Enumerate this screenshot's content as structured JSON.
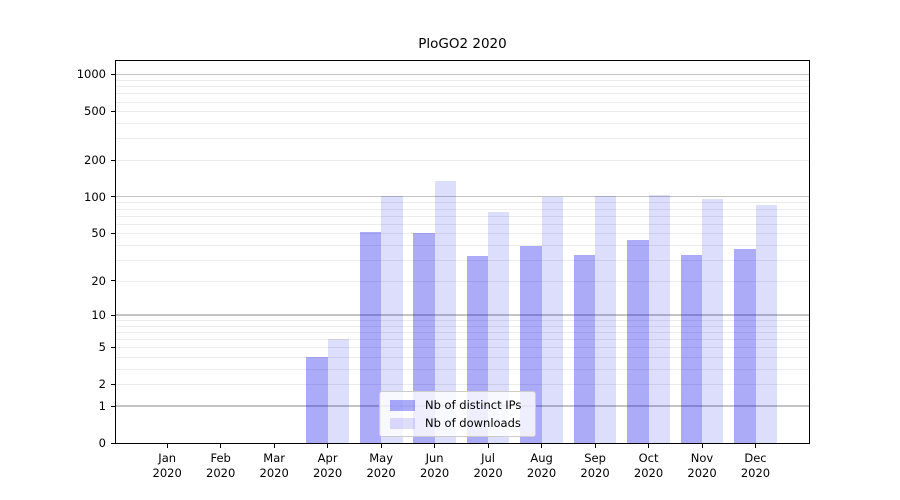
{
  "title": "PloGO2 2020",
  "colors": {
    "bar_dark": "#0d0deb59",
    "bar_light": "#0d0deb24",
    "grid_major": "#c4c4c4",
    "grid_minor": "#ececec",
    "spine": "#000000",
    "legend_bg": "#ffffffcc",
    "legend_border": "#cccccc"
  },
  "legend": {
    "items": [
      {
        "label": "Nb of distinct IPs",
        "color": "#0d0deb59"
      },
      {
        "label": "Nb of downloads",
        "color": "#0d0deb24"
      }
    ]
  },
  "chart_data": {
    "type": "bar",
    "title": "PloGO2 2020",
    "categories": [
      "Jan 2020",
      "Feb 2020",
      "Mar 2020",
      "Apr 2020",
      "May 2020",
      "Jun 2020",
      "Jul 2020",
      "Aug 2020",
      "Sep 2020",
      "Oct 2020",
      "Nov 2020",
      "Dec 2020"
    ],
    "series": [
      {
        "name": "Nb of distinct IPs",
        "values": [
          0,
          0,
          0,
          4,
          51,
          50,
          32,
          39,
          33,
          44,
          33,
          37
        ]
      },
      {
        "name": "Nb of downloads",
        "values": [
          0,
          0,
          0,
          6,
          101,
          134,
          75,
          100,
          102,
          104,
          95,
          85
        ]
      }
    ],
    "yscale": "log1p",
    "ylim": [
      0,
      1285
    ],
    "yticks": [
      0,
      1,
      2,
      5,
      10,
      20,
      50,
      100,
      200,
      500,
      1000
    ],
    "grid_major": [
      1,
      10,
      100,
      1000
    ],
    "grid_minor": [
      2,
      3,
      4,
      5,
      6,
      7,
      8,
      9,
      20,
      30,
      40,
      50,
      60,
      70,
      80,
      90,
      200,
      300,
      400,
      500,
      600,
      700,
      800,
      900
    ],
    "xlim": [
      -0.957,
      12
    ],
    "bar_width": 0.4,
    "grid": "horizontal",
    "legend_position": "lower center",
    "xlabel": "",
    "ylabel": ""
  }
}
